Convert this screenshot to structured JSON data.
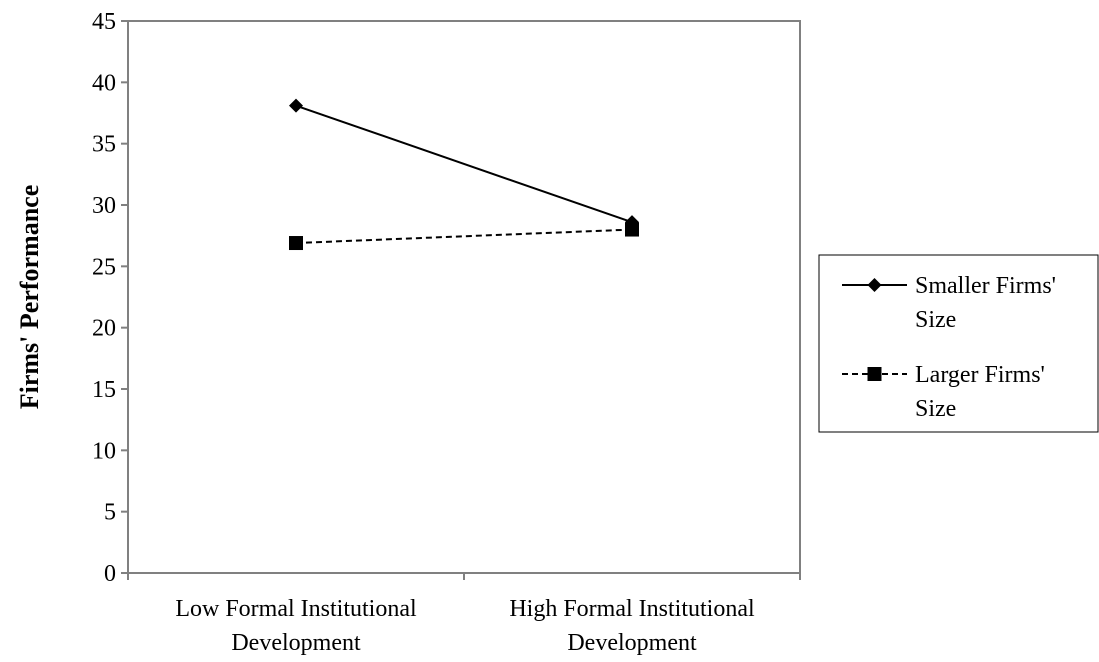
{
  "chart_data": {
    "type": "line",
    "categories": [
      [
        "Low Formal Institutional",
        "Development"
      ],
      [
        "High Formal Institutional",
        "Development"
      ]
    ],
    "ylabel": "Firms' Performance",
    "xlabel": "",
    "title": "",
    "ylim": [
      0,
      45
    ],
    "yticks": [
      0,
      5,
      10,
      15,
      20,
      25,
      30,
      35,
      40,
      45
    ],
    "grid": false,
    "legend_position": "right",
    "series": [
      {
        "name": [
          "Smaller Firms'",
          "Size"
        ],
        "values": [
          38.1,
          28.6
        ],
        "line_style": "solid",
        "marker": "diamond",
        "color": "#000000"
      },
      {
        "name": [
          "Larger Firms'",
          "Size"
        ],
        "values": [
          26.9,
          28.0
        ],
        "line_style": "dashed",
        "marker": "square",
        "color": "#000000"
      }
    ]
  }
}
